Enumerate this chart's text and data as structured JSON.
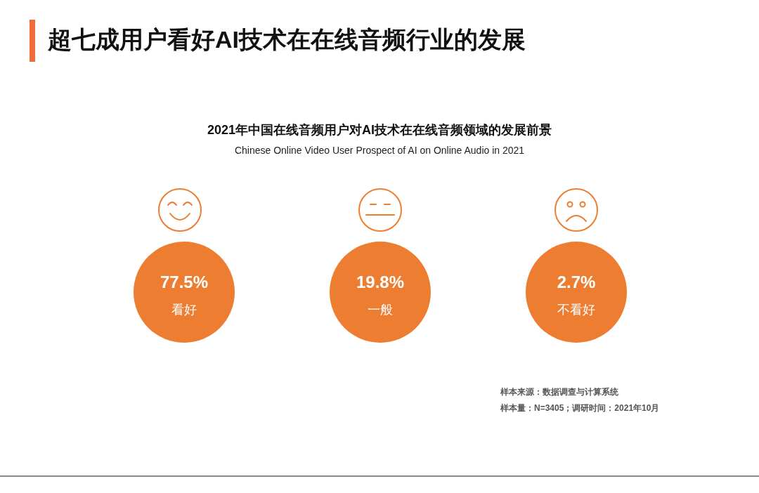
{
  "chart_data": {
    "type": "other",
    "title": "超七成用户看好AI技术在在线音频行业的发展",
    "subtitle": "2021年中国在线音频用户对AI技术在在线音频领域的发展前景",
    "categories": [
      "看好",
      "一般",
      "不看好"
    ],
    "values": [
      77.5,
      19.8,
      2.7
    ],
    "value_labels": [
      "77.5%",
      "19.8%",
      "2.7%"
    ],
    "colors": [
      "#ed7d31",
      "#ed7d31",
      "#ed7d31"
    ],
    "annotations": [
      "Chinese Online Video User Prospect of AI on Online Audio in 2021",
      "样本来源：数据调查与计算系统",
      "样本量：N=3405；调研时间：2021年10月"
    ]
  }
}
